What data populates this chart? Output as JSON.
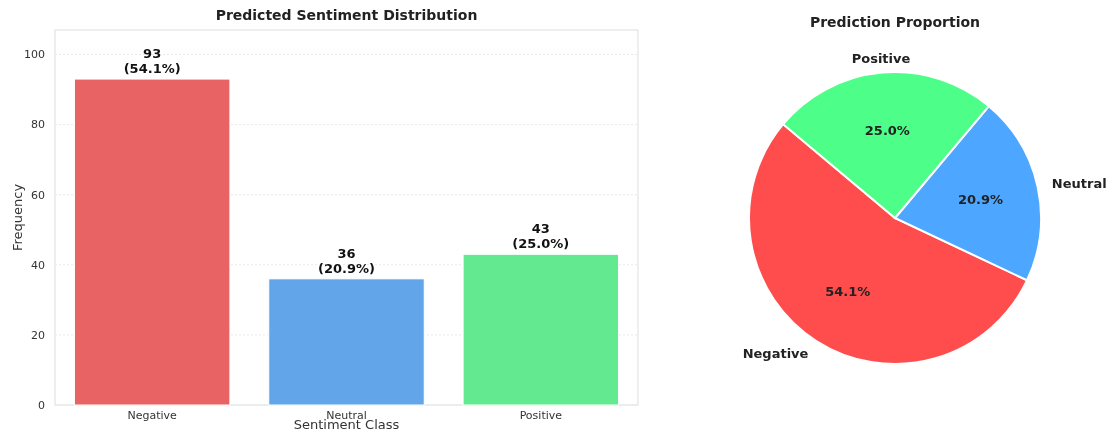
{
  "chart_data": [
    {
      "type": "bar",
      "title": "Predicted Sentiment Distribution",
      "xlabel": "Sentiment Class",
      "ylabel": "Frequency",
      "categories": [
        "Negative",
        "Neutral",
        "Positive"
      ],
      "values": [
        93,
        36,
        43
      ],
      "colors": [
        "#e86464",
        "#63a5e9",
        "#63e98f"
      ],
      "value_labels": [
        "93\n(54.1%)",
        "36\n(20.9%)",
        "43\n(25.0%)"
      ],
      "ylim": [
        0,
        107
      ],
      "yticks": [
        0,
        20,
        40,
        60,
        80,
        100
      ],
      "grid": "y"
    },
    {
      "type": "pie",
      "title": "Prediction Proportion",
      "categories": [
        "Negative",
        "Neutral",
        "Positive"
      ],
      "values": [
        54.1,
        20.9,
        25.0
      ],
      "colors": [
        "#ff4d4d",
        "#4da6ff",
        "#4dff88"
      ],
      "value_labels": [
        "54.1%",
        "20.9%",
        "25.0%"
      ]
    }
  ]
}
